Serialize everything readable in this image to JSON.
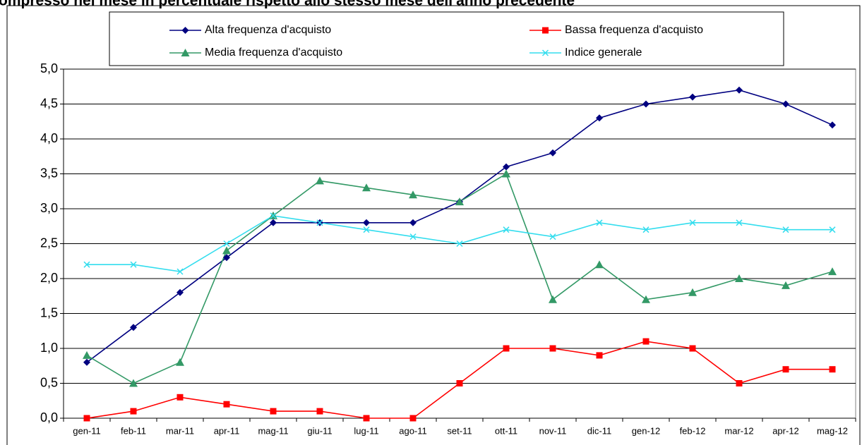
{
  "chart_data": {
    "type": "line",
    "title": "ompresso nel mese in percentuale rispetto allo stesso mese dell'anno precedente",
    "categories": [
      "gen-11",
      "feb-11",
      "mar-11",
      "apr-11",
      "mag-11",
      "giu-11",
      "lug-11",
      "ago-11",
      "set-11",
      "ott-11",
      "nov-11",
      "dic-11",
      "gen-12",
      "feb-12",
      "mar-12",
      "apr-12",
      "mag-12"
    ],
    "series": [
      {
        "name": "Alta frequenza d'acquisto",
        "color": "#000080",
        "marker": "diamond",
        "values": [
          0.8,
          1.3,
          1.8,
          2.3,
          2.8,
          2.8,
          2.8,
          2.8,
          3.1,
          3.6,
          3.8,
          4.3,
          4.5,
          4.6,
          4.7,
          4.5,
          4.2
        ]
      },
      {
        "name": "Bassa frequenza d'acquisto",
        "color": "#ff0000",
        "marker": "square",
        "values": [
          0,
          0.1,
          0.3,
          0.2,
          0.1,
          0.1,
          0,
          0,
          0.5,
          1.0,
          1.0,
          0.9,
          1.1,
          1.0,
          0.5,
          0.7,
          0.7
        ]
      },
      {
        "name": "Media frequenza d'acquisto",
        "color": "#339966",
        "marker": "triangle",
        "values": [
          0.9,
          0.5,
          0.8,
          2.4,
          2.9,
          3.4,
          3.3,
          3.2,
          3.1,
          3.5,
          1.7,
          2.2,
          1.7,
          1.8,
          2.0,
          1.9,
          2.1
        ]
      },
      {
        "name": "Indice generale",
        "color": "#33ddee",
        "marker": "x",
        "values": [
          2.2,
          2.2,
          2.1,
          2.5,
          2.9,
          2.8,
          2.7,
          2.6,
          2.5,
          2.7,
          2.6,
          2.8,
          2.7,
          2.8,
          2.8,
          2.7,
          2.7
        ]
      }
    ],
    "ylim": [
      0,
      5
    ],
    "yticks": [
      {
        "value": 0,
        "label": "0,0"
      },
      {
        "value": 0.5,
        "label": "0,5"
      },
      {
        "value": 1,
        "label": "1,0"
      },
      {
        "value": 1.5,
        "label": "1,5"
      },
      {
        "value": 2,
        "label": "2,0"
      },
      {
        "value": 2.5,
        "label": "2,5"
      },
      {
        "value": 3,
        "label": "3,0"
      },
      {
        "value": 3.5,
        "label": "3,5"
      },
      {
        "value": 4,
        "label": "4,0"
      },
      {
        "value": 4.5,
        "label": "4,5"
      },
      {
        "value": 5,
        "label": "5,0"
      }
    ],
    "grid": true,
    "legend": "top"
  }
}
